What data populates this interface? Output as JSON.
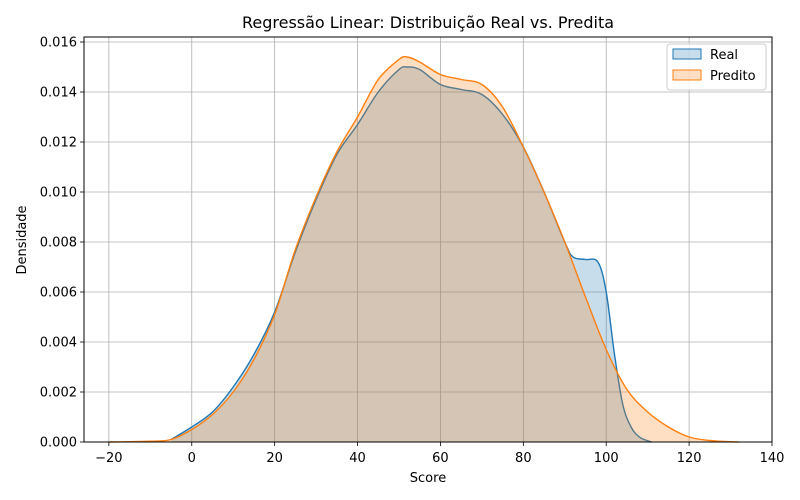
{
  "chart_data": {
    "type": "area",
    "title": "Regressão Linear: Distribuição Real vs. Predita",
    "xlabel": "Score",
    "ylabel": "Densidade",
    "xlim": [
      -26,
      140
    ],
    "ylim": [
      0,
      0.0162
    ],
    "xticks": [
      -20,
      0,
      20,
      40,
      60,
      80,
      100,
      120,
      140
    ],
    "xtick_labels": [
      "−20",
      "0",
      "20",
      "40",
      "60",
      "80",
      "100",
      "120",
      "140"
    ],
    "yticks": [
      0,
      0.002,
      0.004,
      0.006,
      0.008,
      0.01,
      0.012,
      0.014,
      0.016
    ],
    "ytick_labels": [
      "0.000",
      "0.002",
      "0.004",
      "0.006",
      "0.008",
      "0.010",
      "0.012",
      "0.014",
      "0.016"
    ],
    "grid": true,
    "legend_position": "top-right",
    "series": [
      {
        "name": "Real",
        "color": "#1f77b4",
        "fill": "#1f77b4",
        "fill_opacity": 0.25,
        "x": [
          -5,
          0,
          5,
          10,
          15,
          20,
          25,
          30,
          35,
          40,
          45,
          50,
          52,
          55,
          60,
          65,
          70,
          75,
          80,
          85,
          90,
          92,
          95,
          98,
          100,
          102,
          104,
          106,
          108,
          110,
          111
        ],
        "y": [
          0.0001,
          0.0006,
          0.0012,
          0.0022,
          0.0035,
          0.0052,
          0.0076,
          0.0097,
          0.0115,
          0.0127,
          0.014,
          0.0149,
          0.015,
          0.0149,
          0.0143,
          0.0141,
          0.0139,
          0.0131,
          0.0118,
          0.01,
          0.008,
          0.0074,
          0.0073,
          0.0072,
          0.006,
          0.0035,
          0.0015,
          0.0006,
          0.0002,
          5e-05,
          0
        ]
      },
      {
        "name": "Predito",
        "color": "#ff7f0e",
        "fill": "#ff7f0e",
        "fill_opacity": 0.25,
        "x": [
          -20,
          -10,
          -5,
          0,
          5,
          10,
          15,
          20,
          25,
          30,
          35,
          40,
          45,
          50,
          52,
          55,
          60,
          65,
          70,
          75,
          80,
          85,
          90,
          95,
          100,
          105,
          110,
          115,
          120,
          125,
          130,
          132
        ],
        "y": [
          0,
          3e-05,
          0.0001,
          0.0005,
          0.0011,
          0.002,
          0.0033,
          0.0051,
          0.0077,
          0.0098,
          0.0116,
          0.013,
          0.0145,
          0.0153,
          0.0154,
          0.0152,
          0.0147,
          0.0145,
          0.0143,
          0.0134,
          0.0118,
          0.01,
          0.008,
          0.0058,
          0.0037,
          0.0021,
          0.0012,
          0.0006,
          0.0002,
          6e-05,
          1e-05,
          0
        ]
      }
    ]
  }
}
